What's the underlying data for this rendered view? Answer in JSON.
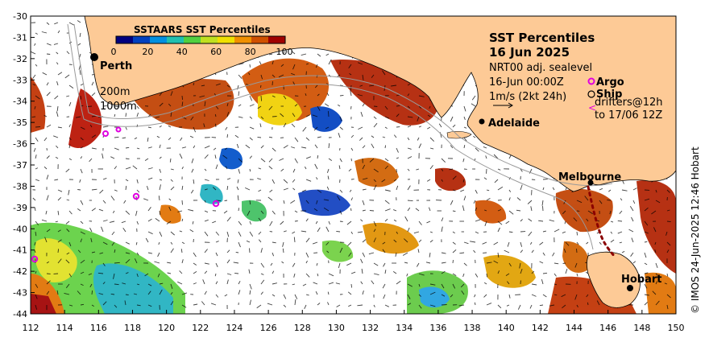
{
  "title": {
    "line1": "SST Percentiles",
    "line2": "16 Jun 2025"
  },
  "info": {
    "line1": "NRT00 adj. sealevel",
    "line2": "16-Jun 00:00Z",
    "line3": "1m/s (2kt 24h)"
  },
  "legend": {
    "argo": "Argo",
    "ship": "Ship",
    "drifters_line1": "drifters@12h",
    "drifters_line2": "to 17/06 12Z"
  },
  "colorbar": {
    "title": "SSTAARS SST Percentiles",
    "ticks": [
      "0",
      "20",
      "40",
      "60",
      "80",
      "100"
    ],
    "colors": [
      "#00007f",
      "#0040c0",
      "#0090e0",
      "#20c0b0",
      "#50d040",
      "#c0e020",
      "#f0e000",
      "#f09000",
      "#d05000",
      "#a00000"
    ]
  },
  "contours": {
    "c200": "200m",
    "c1000": "1000m"
  },
  "cities": {
    "perth": "Perth",
    "adelaide": "Adelaide",
    "melbourne": "Melbourne",
    "hobart": "Hobart"
  },
  "axes": {
    "x_ticks": [
      "112",
      "114",
      "116",
      "118",
      "120",
      "122",
      "124",
      "126",
      "128",
      "130",
      "132",
      "134",
      "136",
      "138",
      "140",
      "142",
      "144",
      "146",
      "148",
      "150"
    ],
    "y_ticks": [
      "-30",
      "-31",
      "-32",
      "-33",
      "-34",
      "-35",
      "-36",
      "-37",
      "-38",
      "-39",
      "-40",
      "-41",
      "-42",
      "-43",
      "-44"
    ]
  },
  "copyright": "© IMOS 24-Jun-2025 12:46 Hobart",
  "colors": {
    "land": "#fdca96",
    "ocean": "#ffffff",
    "argo": "#e000e0"
  }
}
